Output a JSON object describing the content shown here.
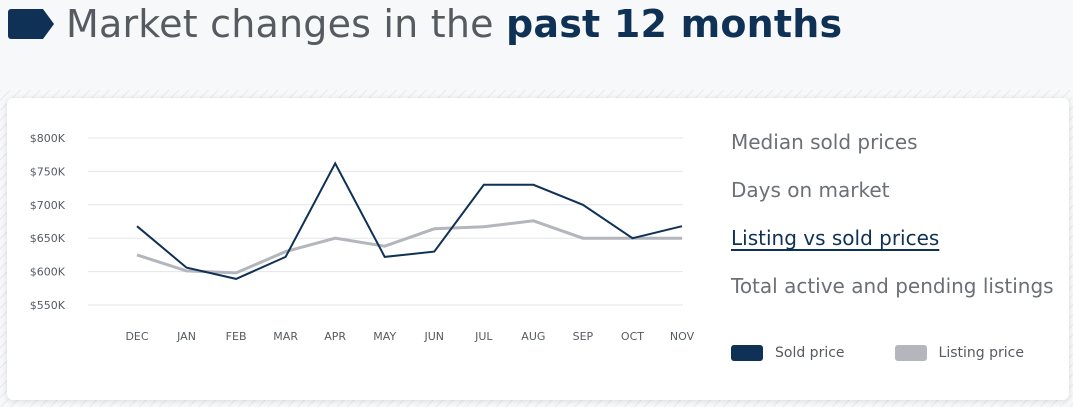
{
  "header": {
    "title_prefix": "Market changes in the ",
    "title_emphasis": "past 12 months",
    "icon": "tag-icon"
  },
  "menu": {
    "items": [
      {
        "label": "Median sold prices",
        "active": false
      },
      {
        "label": "Days on market",
        "active": false
      },
      {
        "label": "Listing vs sold prices",
        "active": true
      },
      {
        "label": "Total active and pending listings",
        "active": false
      }
    ]
  },
  "colors": {
    "sold": "#0f3156",
    "listing": "#b3b6bc",
    "grid": "#e3e5e8",
    "tick_text": "#555b60"
  },
  "chart_data": {
    "type": "line",
    "categories": [
      "DEC",
      "JAN",
      "FEB",
      "MAR",
      "APR",
      "MAY",
      "JUN",
      "JUL",
      "AUG",
      "SEP",
      "OCT",
      "NOV"
    ],
    "y_ticks": [
      550,
      600,
      650,
      700,
      750,
      800
    ],
    "y_tick_labels": [
      "$550K",
      "$600K",
      "$650K",
      "$700K",
      "$750K",
      "$800K"
    ],
    "ylim": [
      550,
      800
    ],
    "grid": true,
    "legend_position": "bottom-right",
    "series": [
      {
        "name": "Sold price",
        "color": "#0f3156",
        "values": [
          668,
          606,
          589,
          622,
          762,
          622,
          630,
          730,
          730,
          700,
          650,
          668
        ]
      },
      {
        "name": "Listing price",
        "color": "#b3b6bc",
        "values": [
          625,
          601,
          598,
          630,
          650,
          638,
          664,
          667,
          676,
          650,
          650,
          650
        ]
      }
    ]
  }
}
